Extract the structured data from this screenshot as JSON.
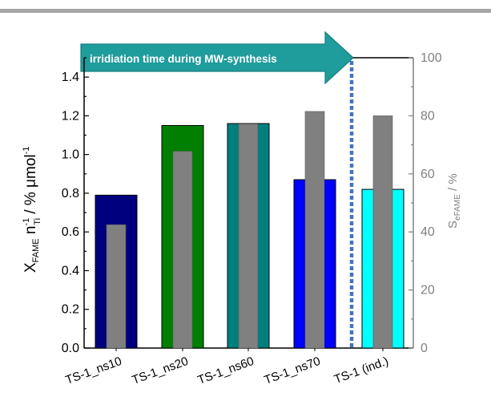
{
  "chart_data": {
    "type": "bar",
    "categories": [
      "TS-1_ns10",
      "TS-1_ns20",
      "TS-1_ns60",
      "TS-1_ns70",
      "TS-1 (ind.)"
    ],
    "series": [
      {
        "values": [
          0.79,
          1.15,
          1.16,
          0.87,
          0.82
        ],
        "colors": [
          "#00007f",
          "#007f00",
          "#007f7f",
          "#0000ff",
          "#00ffff"
        ]
      },
      {
        "values": [
          42.5,
          67.8,
          77.2,
          81.5,
          80.0
        ],
        "color": "#808080"
      }
    ],
    "y_left": {
      "ylim": [
        0,
        1.5
      ],
      "ticks": [
        "0.0",
        "0.2",
        "0.4",
        "0.6",
        "0.8",
        "1.0",
        "1.2",
        "1.4"
      ]
    },
    "y_right": {
      "ylim": [
        0,
        100
      ],
      "ticks": [
        "0",
        "20",
        "40",
        "60",
        "80",
        "100"
      ]
    },
    "annotation": "irridiation time during MW-synthesis",
    "annotation_color": "#1f9c9c",
    "divider_color": "#4472c4",
    "left_axis_color": "#000000",
    "right_axis_color": "#808080"
  }
}
